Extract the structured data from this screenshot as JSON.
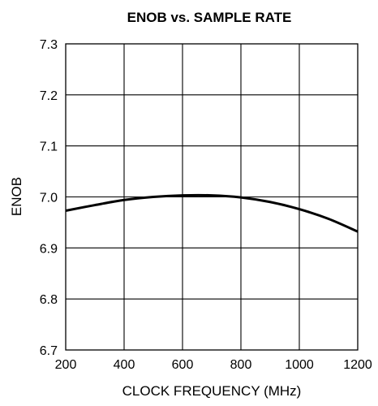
{
  "chart_data": {
    "type": "line",
    "title": "ENOB vs. SAMPLE RATE",
    "xlabel": "CLOCK FREQUENCY (MHz)",
    "ylabel": "ENOB",
    "xlim": [
      200,
      1200
    ],
    "ylim": [
      6.7,
      7.3
    ],
    "xticks": [
      "200",
      "400",
      "600",
      "800",
      "1000",
      "1200"
    ],
    "yticks": [
      "6.7",
      "6.8",
      "6.9",
      "7.0",
      "7.1",
      "7.2",
      "7.3"
    ],
    "grid": true,
    "legend": "none",
    "series": [
      {
        "x": [
          200,
          300,
          400,
          500,
          600,
          700,
          800,
          900,
          1000,
          1100,
          1200
        ],
        "y": [
          6.973,
          6.984,
          6.994,
          7.0,
          7.003,
          7.003,
          6.999,
          6.99,
          6.976,
          6.957,
          6.932
        ]
      }
    ],
    "colors": {
      "line": "#000000",
      "grid": "#000000",
      "background": "#ffffff"
    }
  }
}
